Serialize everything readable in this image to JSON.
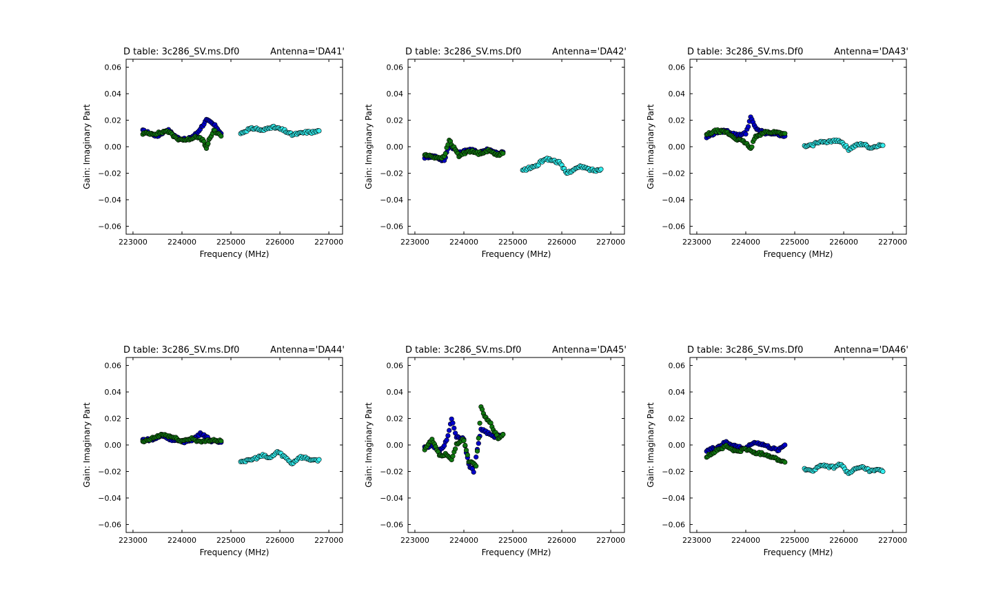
{
  "figure": {
    "panel_title": "D table: 3c286_SV.ms.Df0",
    "xlabel": "Frequency (MHz)",
    "ylabel": "Gain: Imaginary Part",
    "xticks": [
      223000,
      224000,
      225000,
      226000,
      227000
    ],
    "yticks": [
      -0.06,
      -0.04,
      -0.02,
      0.0,
      0.02,
      0.04,
      0.06
    ],
    "xlim": [
      222860,
      227280
    ],
    "ylim": [
      -0.066,
      0.066
    ],
    "series_colors": {
      "A": "#0000cc",
      "B": "#117711",
      "C": "#33eeee"
    }
  },
  "chart_data": [
    {
      "type": "scatter",
      "title": "D table: 3c286_SV.ms.Df0",
      "antenna": "Antenna='DA41'",
      "xlabel": "Frequency (MHz)",
      "ylabel": "Gain: Imaginary Part",
      "xlim": [
        222860,
        227280
      ],
      "ylim": [
        -0.066,
        0.066
      ],
      "series": [
        {
          "key": "A",
          "x": [
            223200,
            223500,
            223700,
            223900,
            224100,
            224300,
            224400,
            224500,
            224600,
            224700,
            224800
          ],
          "y": [
            0.012,
            0.008,
            0.013,
            0.007,
            0.005,
            0.01,
            0.015,
            0.02,
            0.018,
            0.015,
            0.01
          ]
        },
        {
          "key": "B",
          "x": [
            223200,
            223500,
            223700,
            223900,
            224100,
            224300,
            224450,
            224500,
            224550,
            224650,
            224800
          ],
          "y": [
            0.01,
            0.01,
            0.012,
            0.006,
            0.005,
            0.008,
            0.004,
            -0.002,
            0.005,
            0.012,
            0.008
          ]
        },
        {
          "key": "C",
          "x": [
            225200,
            225350,
            225500,
            225650,
            225800,
            225950,
            226100,
            226250,
            226400,
            226550,
            226700,
            226800
          ],
          "y": [
            0.01,
            0.013,
            0.014,
            0.012,
            0.015,
            0.014,
            0.012,
            0.009,
            0.01,
            0.011,
            0.011,
            0.012
          ]
        }
      ]
    },
    {
      "type": "scatter",
      "title": "D table: 3c286_SV.ms.Df0",
      "antenna": "Antenna='DA42'",
      "xlabel": "Frequency (MHz)",
      "ylabel": "Gain: Imaginary Part",
      "xlim": [
        222860,
        227280
      ],
      "ylim": [
        -0.066,
        0.066
      ],
      "series": [
        {
          "key": "A",
          "x": [
            223200,
            223400,
            223600,
            223700,
            223900,
            224100,
            224300,
            224500,
            224700,
            224800
          ],
          "y": [
            -0.008,
            -0.007,
            -0.011,
            0.002,
            -0.005,
            -0.002,
            -0.004,
            -0.002,
            -0.005,
            -0.004
          ]
        },
        {
          "key": "B",
          "x": [
            223200,
            223400,
            223600,
            223700,
            223900,
            224100,
            224300,
            224500,
            224700,
            224800
          ],
          "y": [
            -0.006,
            -0.008,
            -0.008,
            0.005,
            -0.007,
            -0.003,
            -0.005,
            -0.003,
            -0.006,
            -0.005
          ]
        },
        {
          "key": "C",
          "x": [
            225200,
            225350,
            225500,
            225650,
            225800,
            225950,
            226100,
            226250,
            226400,
            226550,
            226700,
            226800
          ],
          "y": [
            -0.018,
            -0.016,
            -0.014,
            -0.009,
            -0.01,
            -0.012,
            -0.02,
            -0.017,
            -0.015,
            -0.017,
            -0.018,
            -0.017
          ]
        }
      ]
    },
    {
      "type": "scatter",
      "title": "D table: 3c286_SV.ms.Df0",
      "antenna": "Antenna='DA43'",
      "xlabel": "Frequency (MHz)",
      "ylabel": "Gain: Imaginary Part",
      "xlim": [
        222860,
        227280
      ],
      "ylim": [
        -0.066,
        0.066
      ],
      "series": [
        {
          "key": "A",
          "x": [
            223200,
            223400,
            223600,
            223800,
            224000,
            224100,
            224200,
            224400,
            224600,
            224800
          ],
          "y": [
            0.007,
            0.011,
            0.012,
            0.009,
            0.01,
            0.022,
            0.014,
            0.01,
            0.01,
            0.008
          ]
        },
        {
          "key": "B",
          "x": [
            223200,
            223400,
            223600,
            223800,
            224000,
            224100,
            224200,
            224400,
            224600,
            224800
          ],
          "y": [
            0.009,
            0.012,
            0.011,
            0.006,
            0.003,
            -0.002,
            0.008,
            0.011,
            0.011,
            0.01
          ]
        },
        {
          "key": "C",
          "x": [
            225200,
            225350,
            225500,
            225650,
            225800,
            225950,
            226100,
            226250,
            226400,
            226550,
            226700,
            226800
          ],
          "y": [
            0.0,
            0.001,
            0.004,
            0.003,
            0.005,
            0.004,
            -0.002,
            0.001,
            0.002,
            -0.001,
            0.001,
            0.001
          ]
        }
      ]
    },
    {
      "type": "scatter",
      "title": "D table: 3c286_SV.ms.Df0",
      "antenna": "Antenna='DA44'",
      "xlabel": "Frequency (MHz)",
      "ylabel": "Gain: Imaginary Part",
      "xlim": [
        222860,
        227280
      ],
      "ylim": [
        -0.066,
        0.066
      ],
      "series": [
        {
          "key": "A",
          "x": [
            223200,
            223400,
            223600,
            223800,
            224000,
            224200,
            224400,
            224600,
            224800
          ],
          "y": [
            0.004,
            0.004,
            0.007,
            0.004,
            0.002,
            0.004,
            0.009,
            0.003,
            0.002
          ]
        },
        {
          "key": "B",
          "x": [
            223200,
            223400,
            223600,
            223800,
            224000,
            224200,
            224400,
            224600,
            224800
          ],
          "y": [
            0.002,
            0.005,
            0.008,
            0.006,
            0.003,
            0.005,
            0.002,
            0.004,
            0.003
          ]
        },
        {
          "key": "C",
          "x": [
            225200,
            225350,
            225500,
            225650,
            225800,
            225950,
            226100,
            226250,
            226400,
            226550,
            226700,
            226800
          ],
          "y": [
            -0.012,
            -0.012,
            -0.01,
            -0.008,
            -0.01,
            -0.005,
            -0.009,
            -0.014,
            -0.009,
            -0.01,
            -0.012,
            -0.011
          ]
        }
      ]
    },
    {
      "type": "scatter",
      "title": "D table: 3c286_SV.ms.Df0",
      "antenna": "Antenna='DA45'",
      "xlabel": "Frequency (MHz)",
      "ylabel": "Gain: Imaginary Part",
      "xlim": [
        222860,
        227280
      ],
      "ylim": [
        -0.066,
        0.066
      ],
      "series": [
        {
          "key": "A",
          "x": [
            223200,
            223350,
            223500,
            223650,
            223750,
            223850,
            224000,
            224100,
            224200,
            224350,
            224450,
            224600,
            224800
          ],
          "y": [
            -0.002,
            0.0,
            -0.005,
            0.003,
            0.02,
            0.006,
            0.005,
            -0.015,
            -0.02,
            0.012,
            0.01,
            0.006,
            0.008
          ]
        },
        {
          "key": "B",
          "x": [
            223200,
            223350,
            223500,
            223650,
            223750,
            223850,
            224000,
            224100,
            224250,
            224350,
            224450,
            224550,
            224700,
            224800
          ],
          "y": [
            -0.003,
            0.004,
            -0.008,
            -0.007,
            -0.012,
            0.001,
            0.004,
            -0.012,
            -0.016,
            0.028,
            0.02,
            0.016,
            0.005,
            0.008
          ]
        },
        {
          "key": "C",
          "x": [],
          "y": []
        }
      ]
    },
    {
      "type": "scatter",
      "title": "D table: 3c286_SV.ms.Df0",
      "antenna": "Antenna='DA46'",
      "xlabel": "Frequency (MHz)",
      "ylabel": "Gain: Imaginary Part",
      "xlim": [
        222860,
        227280
      ],
      "ylim": [
        -0.066,
        0.066
      ],
      "series": [
        {
          "key": "A",
          "x": [
            223200,
            223400,
            223600,
            223800,
            224000,
            224150,
            224300,
            224500,
            224650,
            224800
          ],
          "y": [
            -0.004,
            -0.002,
            0.002,
            -0.001,
            -0.003,
            0.002,
            0.001,
            -0.002,
            -0.004,
            0.0
          ]
        },
        {
          "key": "B",
          "x": [
            223200,
            223400,
            223600,
            223800,
            224000,
            224200,
            224400,
            224600,
            224800
          ],
          "y": [
            -0.009,
            -0.004,
            -0.001,
            -0.005,
            -0.003,
            -0.006,
            -0.007,
            -0.01,
            -0.013
          ]
        },
        {
          "key": "C",
          "x": [
            225200,
            225350,
            225500,
            225650,
            225800,
            225950,
            226100,
            226250,
            226400,
            226550,
            226700,
            226800
          ],
          "y": [
            -0.018,
            -0.02,
            -0.016,
            -0.016,
            -0.017,
            -0.014,
            -0.022,
            -0.018,
            -0.017,
            -0.02,
            -0.019,
            -0.02
          ]
        }
      ]
    }
  ]
}
